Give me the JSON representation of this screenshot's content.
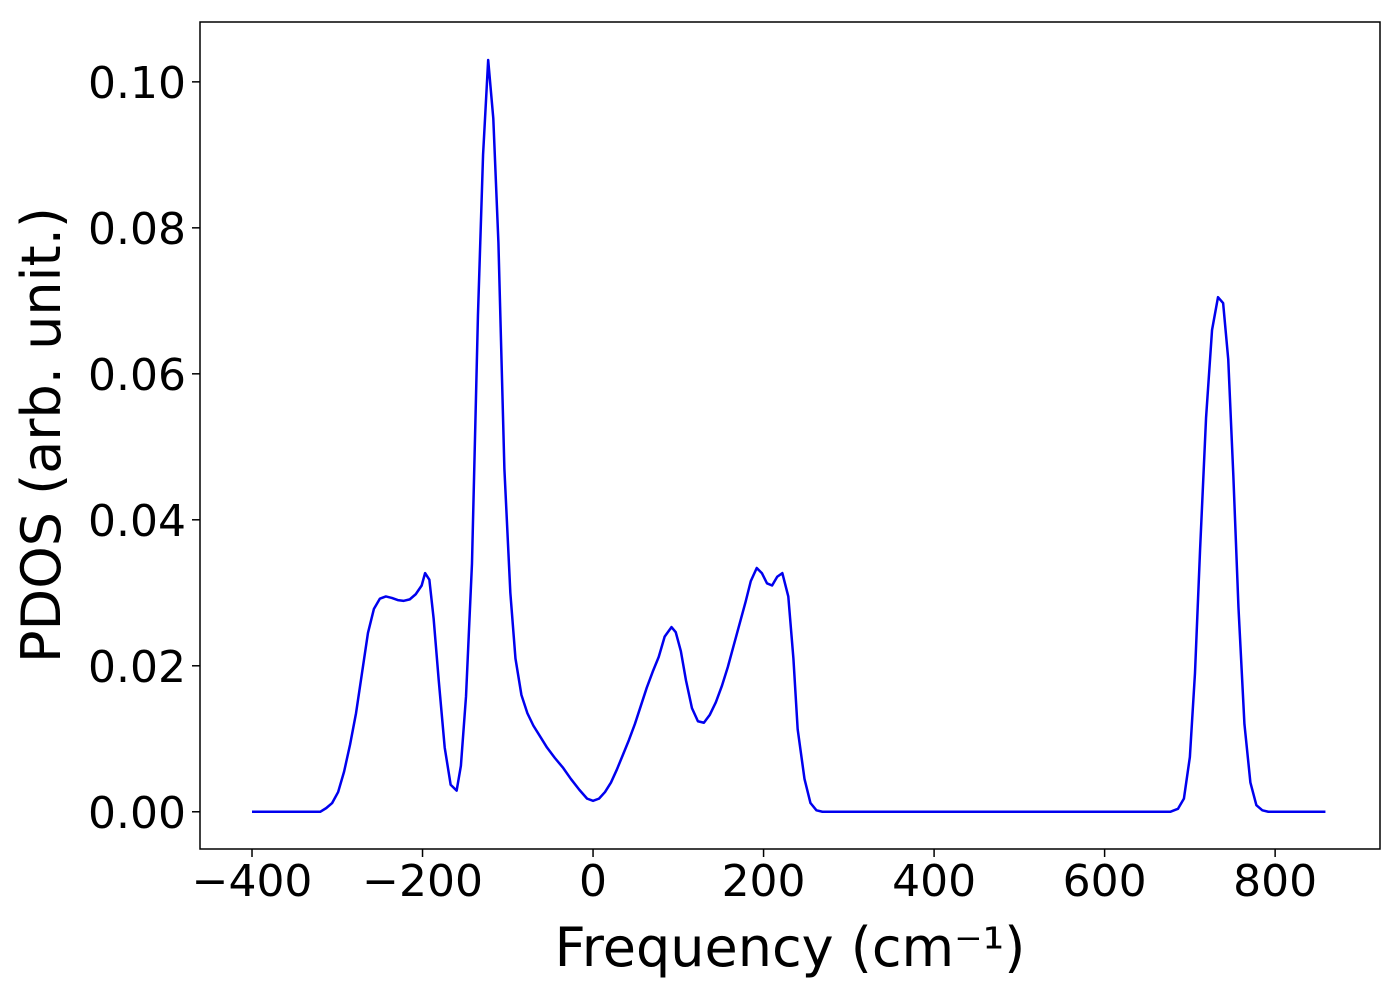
{
  "chart_data": {
    "type": "line",
    "x_label": "Frequency (cm⁻¹)",
    "y_label": "PDOS (arb. unit.)",
    "x": [
      -400,
      -320,
      -313,
      -306,
      -299,
      -292,
      -285,
      -278,
      -271,
      -264,
      -257,
      -250,
      -243,
      -236,
      -229,
      -222,
      -215,
      -208,
      -201,
      -197,
      -192,
      -187,
      -181,
      -174,
      -167,
      -160,
      -155,
      -149,
      -142,
      -135,
      -129,
      -123,
      -117,
      -111,
      -104,
      -97,
      -91,
      -84,
      -77,
      -70,
      -62,
      -54,
      -45,
      -35,
      -26,
      -16,
      -7,
      0,
      7,
      14,
      21,
      28,
      35,
      42,
      49,
      56,
      63,
      70,
      77,
      84,
      92,
      97,
      103,
      109,
      116,
      123,
      130,
      137,
      144,
      151,
      158,
      165,
      172,
      179,
      185,
      192,
      198,
      204,
      210,
      216,
      222,
      229,
      235,
      240,
      248,
      255,
      262,
      269,
      677,
      686,
      693,
      700,
      706,
      712,
      719,
      726,
      733,
      739,
      745,
      751,
      757,
      764,
      771,
      778,
      785,
      792,
      859
    ],
    "series": [
      {
        "name": "PDOS",
        "color": "#0000ee",
        "values": [
          0,
          0,
          0.0005,
          0.0012,
          0.0027,
          0.0055,
          0.0092,
          0.0135,
          0.019,
          0.0245,
          0.0278,
          0.0292,
          0.0295,
          0.0293,
          0.029,
          0.0289,
          0.0291,
          0.0298,
          0.031,
          0.0327,
          0.0318,
          0.0265,
          0.018,
          0.0088,
          0.0037,
          0.0029,
          0.0063,
          0.0158,
          0.034,
          0.068,
          0.09,
          0.103,
          0.095,
          0.078,
          0.047,
          0.03,
          0.021,
          0.016,
          0.0135,
          0.0118,
          0.0103,
          0.0088,
          0.0074,
          0.006,
          0.0045,
          0.003,
          0.0018,
          0.0015,
          0.0018,
          0.0027,
          0.004,
          0.0058,
          0.0078,
          0.0098,
          0.012,
          0.0145,
          0.017,
          0.0192,
          0.0212,
          0.024,
          0.0253,
          0.0246,
          0.022,
          0.018,
          0.0142,
          0.0124,
          0.0122,
          0.0133,
          0.015,
          0.0172,
          0.0198,
          0.0228,
          0.0258,
          0.0288,
          0.0316,
          0.0334,
          0.0327,
          0.0313,
          0.031,
          0.0322,
          0.0327,
          0.0295,
          0.021,
          0.0113,
          0.0045,
          0.0012,
          0.0002,
          0,
          0,
          0.0004,
          0.0018,
          0.0075,
          0.019,
          0.036,
          0.054,
          0.066,
          0.0705,
          0.0697,
          0.062,
          0.046,
          0.028,
          0.012,
          0.004,
          0.0009,
          0.0002,
          0,
          0
        ]
      }
    ],
    "xlim": [
      -461,
      923
    ],
    "ylim": [
      -0.0051,
      0.1082
    ],
    "xticks": [
      {
        "value": -400,
        "label": "−400"
      },
      {
        "value": -200,
        "label": "−200"
      },
      0,
      200,
      400,
      600,
      800
    ],
    "yticks": [
      {
        "value": 0,
        "label": "0.00"
      },
      {
        "value": 0.02,
        "label": "0.02"
      },
      {
        "value": 0.04,
        "label": "0.04"
      },
      {
        "value": 0.06,
        "label": "0.06"
      },
      {
        "value": 0.08,
        "label": "0.08"
      },
      {
        "value": 0.1,
        "label": "0.10"
      }
    ]
  }
}
